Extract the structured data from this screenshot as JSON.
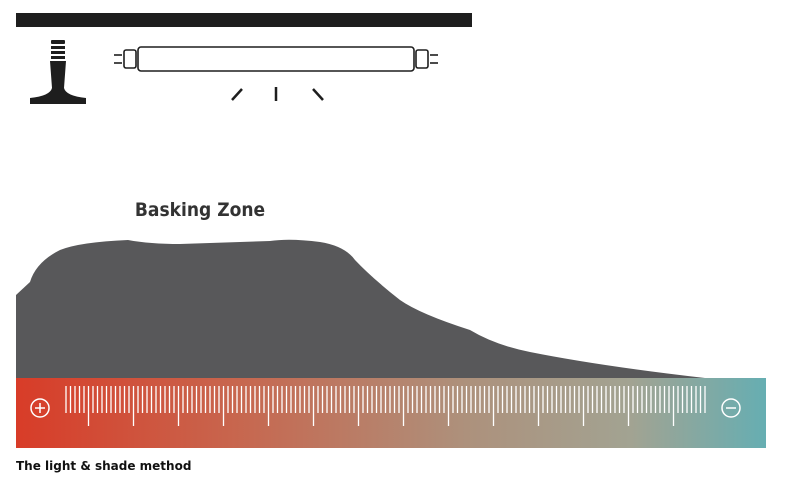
{
  "diagram": {
    "zone_label": "Basking Zone"
  },
  "caption": "The light & shade method"
}
